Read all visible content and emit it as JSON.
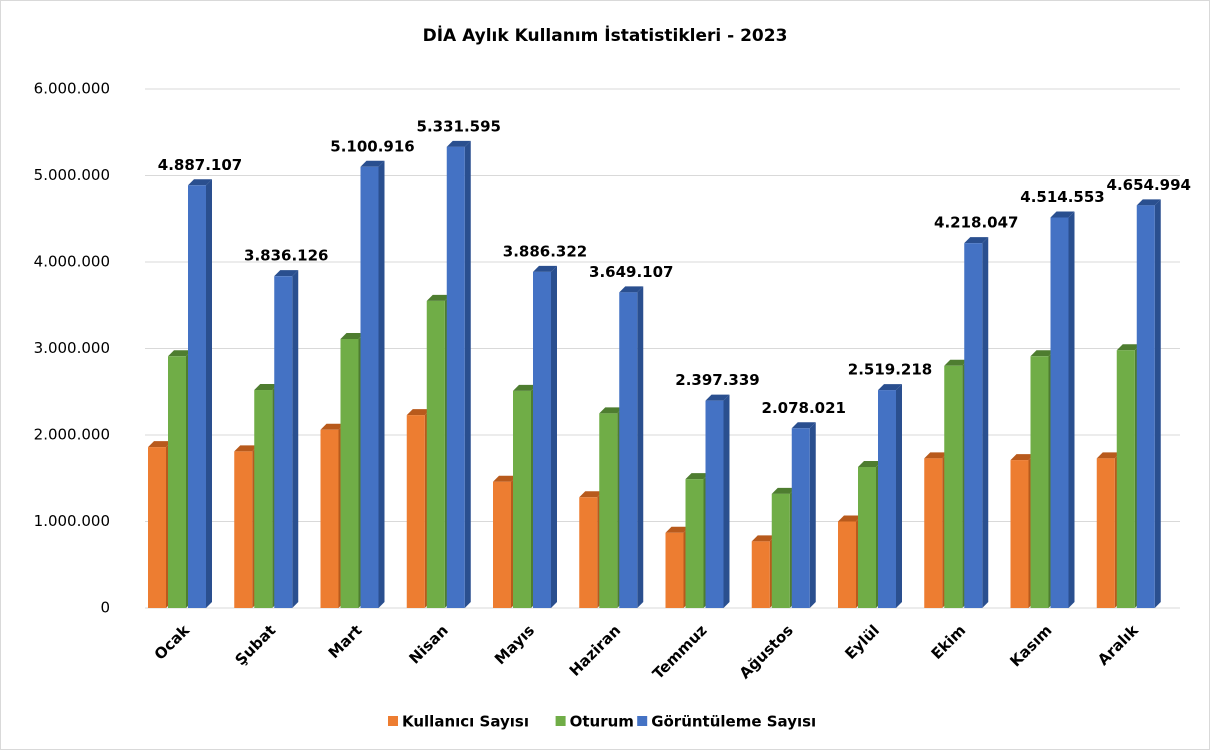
{
  "chart_data": {
    "type": "bar3d",
    "title": "DİA Aylık Kullanım İstatistikleri - 2023",
    "categories": [
      "Ocak",
      "Şubat",
      "Mart",
      "Nisan",
      "Mayıs",
      "Haziran",
      "Temmuz",
      "Ağustos",
      "Eylül",
      "Ekim",
      "Kasım",
      "Aralık"
    ],
    "series": [
      {
        "name": "Kullanıcı Sayısı",
        "color": "#ed7d31",
        "side": "#b85a1c",
        "values": [
          1860000,
          1810000,
          2060000,
          2230000,
          1460000,
          1280000,
          870000,
          770000,
          1000000,
          1730000,
          1710000,
          1730000
        ]
      },
      {
        "name": "Oturum",
        "color": "#70ad47",
        "side": "#4e7d30",
        "values": [
          2910000,
          2520000,
          3110000,
          3550000,
          2510000,
          2250000,
          1490000,
          1320000,
          1630000,
          2800000,
          2910000,
          2980000
        ]
      },
      {
        "name": "Görüntüleme Sayısı",
        "color": "#4472c4",
        "side": "#2a4f8f",
        "values": [
          4887107,
          3836126,
          5100916,
          5331595,
          3886322,
          3649107,
          2397339,
          2078021,
          2519218,
          4218047,
          4514553,
          4654994
        ],
        "value_labels": [
          "4.887.107",
          "3.836.126",
          "5.100.916",
          "5.331.595",
          "3.886.322",
          "3.649.107",
          "2.397.339",
          "2.078.021",
          "2.519.218",
          "4.218.047",
          "4.514.553",
          "4.654.994"
        ]
      }
    ],
    "ylim": [
      0,
      6000000
    ],
    "yticks": [
      0,
      {
        "value": 1000000,
        "label": "1.000.000"
      },
      {
        "value": 2000000,
        "label": "2.000.000"
      },
      {
        "value": 3000000,
        "label": "3.000.000"
      },
      {
        "value": 4000000,
        "label": "4.000.000"
      },
      {
        "value": 5000000,
        "label": "5.000.000"
      },
      {
        "value": 6000000,
        "label": "6.000.000"
      }
    ],
    "grid": true,
    "legend": "bottom"
  }
}
